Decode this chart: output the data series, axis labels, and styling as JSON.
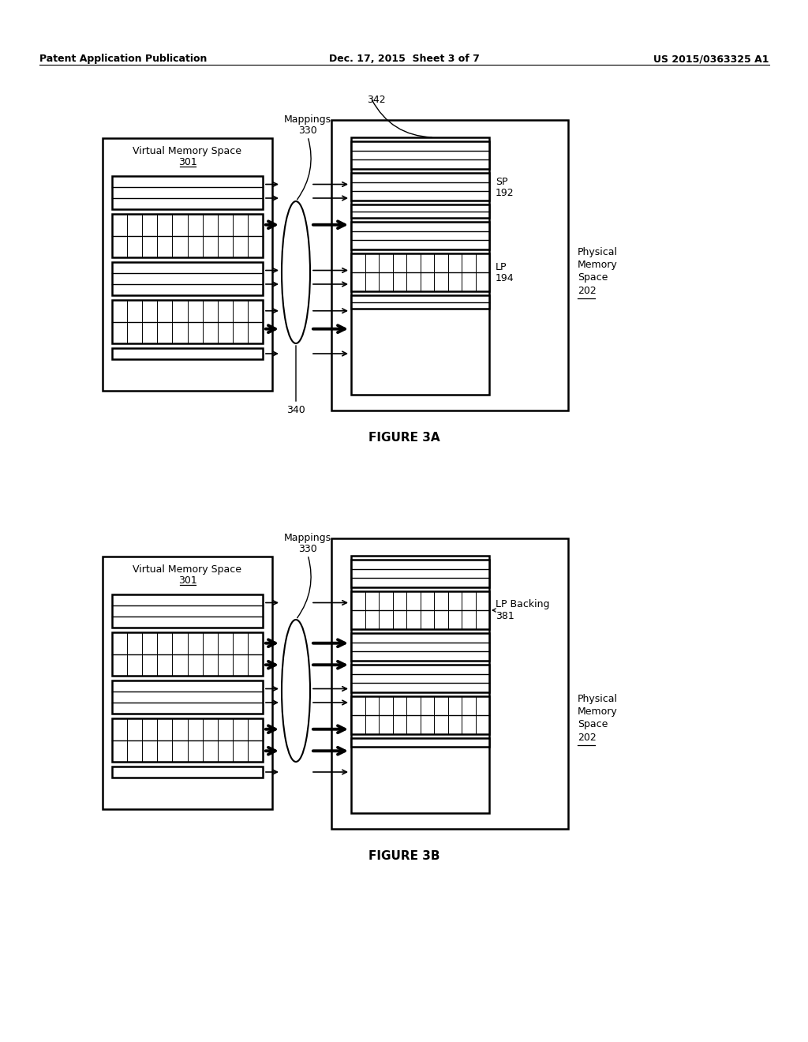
{
  "header_left": "Patent Application Publication",
  "header_mid": "Dec. 17, 2015  Sheet 3 of 7",
  "header_right": "US 2015/0363325 A1",
  "fig3a_label": "FIGURE 3A",
  "fig3b_label": "FIGURE 3B",
  "vms_label": "Virtual Memory Space",
  "vms_num": "301",
  "pms_label1": "Physical",
  "pms_label2": "Memory",
  "pms_label3": "Space",
  "pms_num": "202",
  "sp_label": "SP",
  "sp_num": "192",
  "lp_label": "LP",
  "lp_num": "194",
  "mappings_label": "Mappings",
  "mappings_num_3a": "330",
  "mappings_num_3b": "330",
  "label_342": "342",
  "label_340": "340",
  "lp_backing_label": "LP Backing",
  "lp_backing_num": "381",
  "background": "#ffffff",
  "line_color": "#000000"
}
